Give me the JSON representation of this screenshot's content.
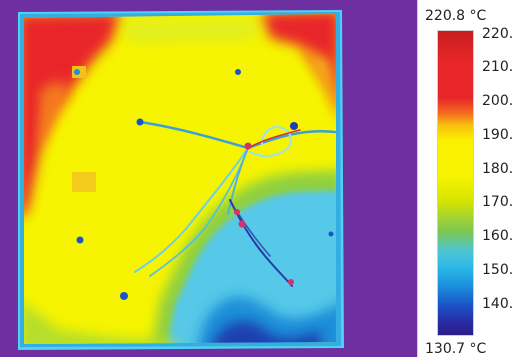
{
  "colors": {
    "background_purple": "#6e2fa0",
    "hot_red": "#e8262a",
    "yellow": "#f6f400",
    "light_blue": "#4fc6e8",
    "dark_blue": "#1a3fb0"
  },
  "scale": {
    "max_label": "220.8 °C",
    "min_label": "130.7 °C",
    "max_value": 220.8,
    "min_value": 130.7,
    "ticks": [
      {
        "label": "220.",
        "value": 220
      },
      {
        "label": "210.",
        "value": 210
      },
      {
        "label": "200.",
        "value": 200
      },
      {
        "label": "190.",
        "value": 190
      },
      {
        "label": "180.",
        "value": 180
      },
      {
        "label": "170.",
        "value": 170
      },
      {
        "label": "160.",
        "value": 160
      },
      {
        "label": "150.",
        "value": 150
      },
      {
        "label": "140.",
        "value": 140
      }
    ]
  }
}
